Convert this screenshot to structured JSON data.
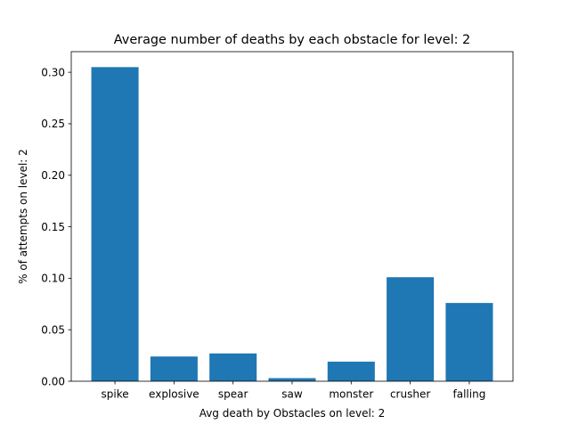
{
  "chart_data": {
    "type": "bar",
    "title": "Average number of deaths by each obstacle for level: 2",
    "xlabel": "Avg death by Obstacles on level: 2",
    "ylabel": "% of attempts on level: 2",
    "categories": [
      "spike",
      "explosive",
      "spear",
      "saw",
      "monster",
      "crusher",
      "falling"
    ],
    "values": [
      0.305,
      0.024,
      0.027,
      0.003,
      0.019,
      0.101,
      0.076
    ],
    "ylim": [
      0,
      0.32
    ],
    "yticks": [
      0.0,
      0.05,
      0.1,
      0.15,
      0.2,
      0.25,
      0.3
    ],
    "ytick_labels": [
      "0.00",
      "0.05",
      "0.10",
      "0.15",
      "0.20",
      "0.25",
      "0.30"
    ],
    "grid": false,
    "bar_color": "#1f77b4"
  }
}
